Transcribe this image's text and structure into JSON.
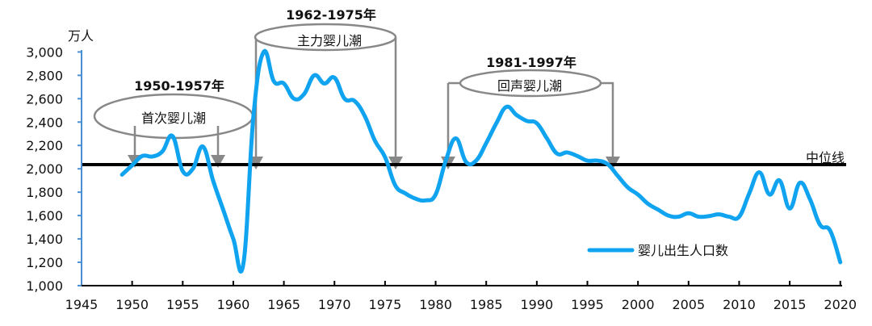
{
  "chart_data": {
    "type": "line",
    "title": "",
    "ylabel": "万人",
    "xlabel": "",
    "ylim": [
      1000,
      3000
    ],
    "xlim": [
      1945,
      2020
    ],
    "yticks": [
      "1,000",
      "1,200",
      "1,400",
      "1,600",
      "1,800",
      "2,000",
      "2,200",
      "2,400",
      "2,600",
      "2,800",
      "3,000"
    ],
    "xticks": [
      "1945",
      "1950",
      "1955",
      "1960",
      "1965",
      "1970",
      "1975",
      "1980",
      "1985",
      "1990",
      "1995",
      "2000",
      "2005",
      "2010",
      "2015",
      "2020"
    ],
    "grid": false,
    "legend_position": "lower right (inside plot)",
    "series": [
      {
        "name": "婴儿出生人口数",
        "color": "#10A3F0",
        "x": [
          1949,
          1950,
          1951,
          1952,
          1953,
          1954,
          1955,
          1956,
          1957,
          1958,
          1959,
          1960,
          1961,
          1962,
          1963,
          1964,
          1965,
          1966,
          1967,
          1968,
          1969,
          1970,
          1971,
          1972,
          1973,
          1974,
          1975,
          1976,
          1977,
          1978,
          1979,
          1980,
          1981,
          1982,
          1983,
          1984,
          1985,
          1986,
          1987,
          1988,
          1989,
          1990,
          1991,
          1992,
          1993,
          1994,
          1995,
          1996,
          1997,
          1998,
          1999,
          2000,
          2001,
          2002,
          2003,
          2004,
          2005,
          2006,
          2007,
          2008,
          2009,
          2010,
          2011,
          2012,
          2013,
          2014,
          2015,
          2016,
          2017,
          2018,
          2019,
          2020
        ],
        "values": [
          1950,
          2030,
          2110,
          2105,
          2150,
          2280,
          1980,
          2000,
          2190,
          1900,
          1650,
          1400,
          1190,
          2460,
          3000,
          2750,
          2730,
          2600,
          2640,
          2800,
          2730,
          2780,
          2600,
          2580,
          2450,
          2240,
          2100,
          1860,
          1790,
          1745,
          1730,
          1780,
          2070,
          2260,
          2060,
          2070,
          2220,
          2390,
          2530,
          2460,
          2410,
          2390,
          2260,
          2130,
          2140,
          2110,
          2070,
          2070,
          2040,
          1940,
          1840,
          1780,
          1700,
          1650,
          1600,
          1590,
          1620,
          1590,
          1595,
          1610,
          1590,
          1590,
          1790,
          1970,
          1780,
          1900,
          1660,
          1880,
          1740,
          1520,
          1470,
          1200
        ]
      }
    ],
    "reference_lines": [
      {
        "name": "中位线",
        "value": 2040,
        "color": "#000000"
      }
    ],
    "annotations": [
      {
        "period": "1950-1957年",
        "label": "首次婴儿潮",
        "start": 1950.5,
        "end": 1958.5
      },
      {
        "period": "1962-1975年",
        "label": "主力婴儿潮",
        "start": 1962,
        "end": 1976
      },
      {
        "period": "1981-1997年",
        "label": "回声婴儿潮",
        "start": 1981,
        "end": 1997.5
      }
    ]
  },
  "labels": {
    "y_unit": "万人",
    "median_line": "中位线",
    "legend": "婴儿出生人口数",
    "boom1_period": "1950-1957年",
    "boom1_label": "首次婴儿潮",
    "boom2_period": "1962-1975年",
    "boom2_label": "主力婴儿潮",
    "boom3_period": "1981-1997年",
    "boom3_label": "回声婴儿潮"
  },
  "colors": {
    "line": "#10A3F0",
    "y_axis": "#4A8FD4",
    "x_axis": "#000000",
    "median": "#000000",
    "annotation": "#888888"
  }
}
